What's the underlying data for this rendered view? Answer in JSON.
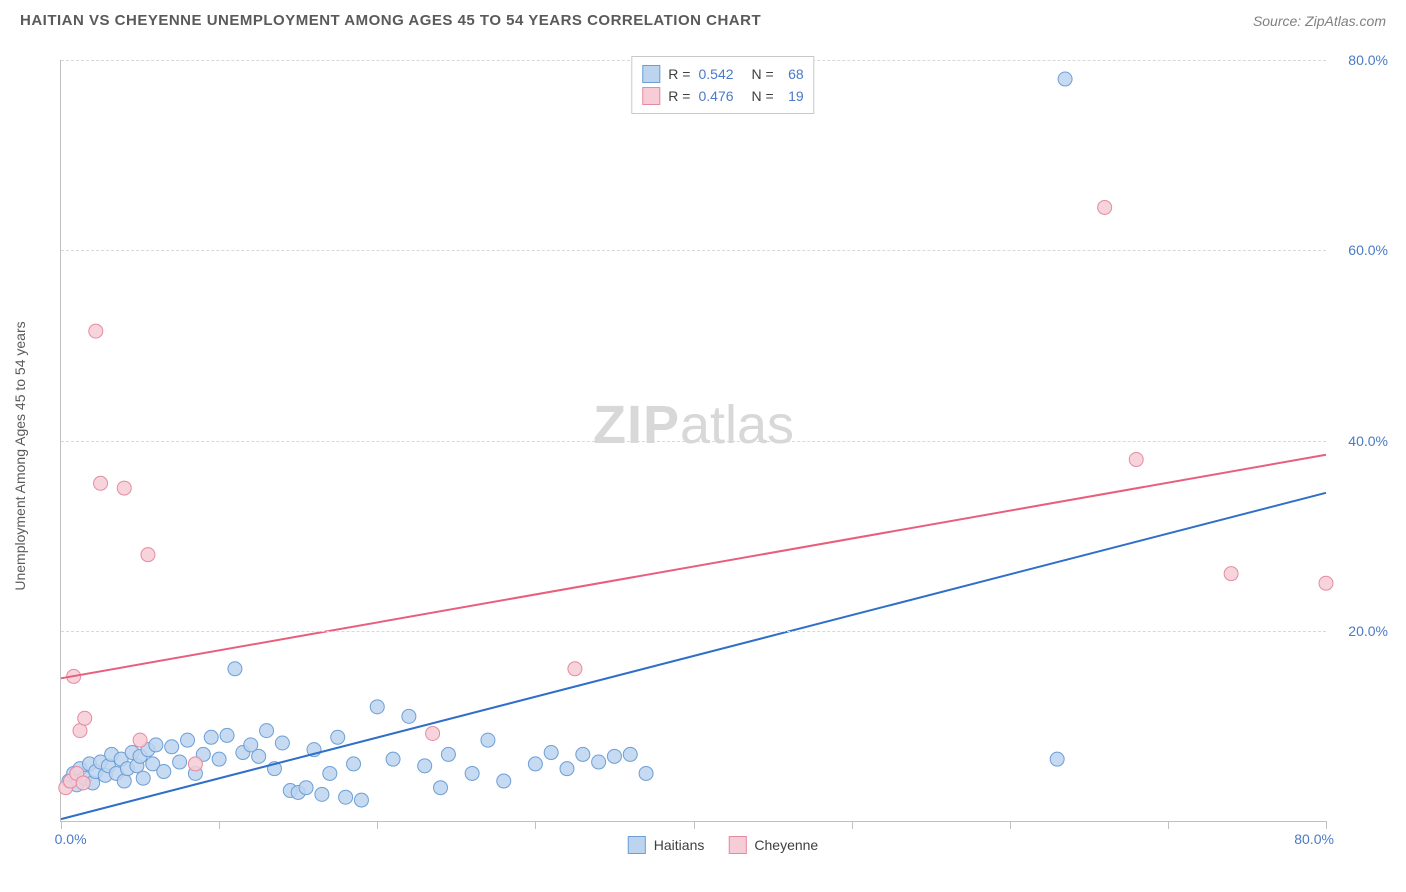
{
  "header": {
    "title": "HAITIAN VS CHEYENNE UNEMPLOYMENT AMONG AGES 45 TO 54 YEARS CORRELATION CHART",
    "source": "Source: ZipAtlas.com"
  },
  "chart": {
    "type": "scatter",
    "y_axis_label": "Unemployment Among Ages 45 to 54 years",
    "xlim": [
      0,
      80
    ],
    "ylim": [
      0,
      80
    ],
    "x_ticks": [
      0,
      10,
      20,
      30,
      40,
      50,
      60,
      70,
      80
    ],
    "y_ticks": [
      20,
      40,
      60,
      80
    ],
    "x_tick_labels": {
      "0": "0.0%",
      "80": "80.0%"
    },
    "y_tick_labels": {
      "20": "20.0%",
      "40": "40.0%",
      "60": "60.0%",
      "80": "80.0%"
    },
    "grid_color": "#d8d8d8",
    "axis_color": "#c0c0c0",
    "tick_label_color": "#4a7ac7",
    "watermark": {
      "part1": "ZIP",
      "part2": "atlas",
      "color": "#d8d8d8"
    },
    "series": [
      {
        "name": "Haitians",
        "marker_fill": "#bcd4ee",
        "marker_stroke": "#6d9fd6",
        "marker_radius": 7,
        "line_color": "#2f6fc9",
        "line_width": 2,
        "trend": {
          "x1": 0,
          "y1": 0.2,
          "x2": 80,
          "y2": 34.5
        },
        "r": "0.542",
        "n": "68",
        "points": [
          [
            0.5,
            4.2
          ],
          [
            0.8,
            5.0
          ],
          [
            1.0,
            3.8
          ],
          [
            1.2,
            5.5
          ],
          [
            1.5,
            4.5
          ],
          [
            1.8,
            6.0
          ],
          [
            2.0,
            4.0
          ],
          [
            2.2,
            5.2
          ],
          [
            2.5,
            6.2
          ],
          [
            2.8,
            4.8
          ],
          [
            3.0,
            5.8
          ],
          [
            3.2,
            7.0
          ],
          [
            3.5,
            5.0
          ],
          [
            3.8,
            6.5
          ],
          [
            4.0,
            4.2
          ],
          [
            4.2,
            5.5
          ],
          [
            4.5,
            7.2
          ],
          [
            4.8,
            5.8
          ],
          [
            5.0,
            6.8
          ],
          [
            5.2,
            4.5
          ],
          [
            5.5,
            7.5
          ],
          [
            5.8,
            6.0
          ],
          [
            6.0,
            8.0
          ],
          [
            6.5,
            5.2
          ],
          [
            7.0,
            7.8
          ],
          [
            7.5,
            6.2
          ],
          [
            8.0,
            8.5
          ],
          [
            8.5,
            5.0
          ],
          [
            9.0,
            7.0
          ],
          [
            9.5,
            8.8
          ],
          [
            10.0,
            6.5
          ],
          [
            10.5,
            9.0
          ],
          [
            11.0,
            16.0
          ],
          [
            11.5,
            7.2
          ],
          [
            12.0,
            8.0
          ],
          [
            12.5,
            6.8
          ],
          [
            13.0,
            9.5
          ],
          [
            13.5,
            5.5
          ],
          [
            14.0,
            8.2
          ],
          [
            14.5,
            3.2
          ],
          [
            15.0,
            3.0
          ],
          [
            15.5,
            3.5
          ],
          [
            16.0,
            7.5
          ],
          [
            16.5,
            2.8
          ],
          [
            17.0,
            5.0
          ],
          [
            17.5,
            8.8
          ],
          [
            18.0,
            2.5
          ],
          [
            18.5,
            6.0
          ],
          [
            19.0,
            2.2
          ],
          [
            20.0,
            12.0
          ],
          [
            21.0,
            6.5
          ],
          [
            22.0,
            11.0
          ],
          [
            23.0,
            5.8
          ],
          [
            24.0,
            3.5
          ],
          [
            24.5,
            7.0
          ],
          [
            26.0,
            5.0
          ],
          [
            27.0,
            8.5
          ],
          [
            28.0,
            4.2
          ],
          [
            30.0,
            6.0
          ],
          [
            31.0,
            7.2
          ],
          [
            32.0,
            5.5
          ],
          [
            33.0,
            7.0
          ],
          [
            34.0,
            6.2
          ],
          [
            35.0,
            6.8
          ],
          [
            36.0,
            7.0
          ],
          [
            37.0,
            5.0
          ],
          [
            63.5,
            78.0
          ],
          [
            63.0,
            6.5
          ]
        ]
      },
      {
        "name": "Cheyenne",
        "marker_fill": "#f6cdd6",
        "marker_stroke": "#e58ba1",
        "marker_radius": 7,
        "line_color": "#e85f7d",
        "line_width": 2,
        "trend": {
          "x1": 0,
          "y1": 15.0,
          "x2": 80,
          "y2": 38.5
        },
        "r": "0.476",
        "n": "19",
        "points": [
          [
            0.3,
            3.5
          ],
          [
            0.6,
            4.2
          ],
          [
            0.8,
            15.2
          ],
          [
            1.0,
            5.0
          ],
          [
            1.2,
            9.5
          ],
          [
            1.4,
            4.0
          ],
          [
            1.5,
            10.8
          ],
          [
            2.2,
            51.5
          ],
          [
            2.5,
            35.5
          ],
          [
            4.0,
            35.0
          ],
          [
            5.0,
            8.5
          ],
          [
            5.5,
            28.0
          ],
          [
            8.5,
            6.0
          ],
          [
            23.5,
            9.2
          ],
          [
            32.5,
            16.0
          ],
          [
            66.0,
            64.5
          ],
          [
            68.0,
            38.0
          ],
          [
            74.0,
            26.0
          ],
          [
            80.0,
            25.0
          ]
        ]
      }
    ],
    "legend_bottom": [
      {
        "label": "Haitians",
        "fill": "#bcd4ee",
        "stroke": "#6d9fd6"
      },
      {
        "label": "Cheyenne",
        "fill": "#f6cdd6",
        "stroke": "#e58ba1"
      }
    ]
  }
}
